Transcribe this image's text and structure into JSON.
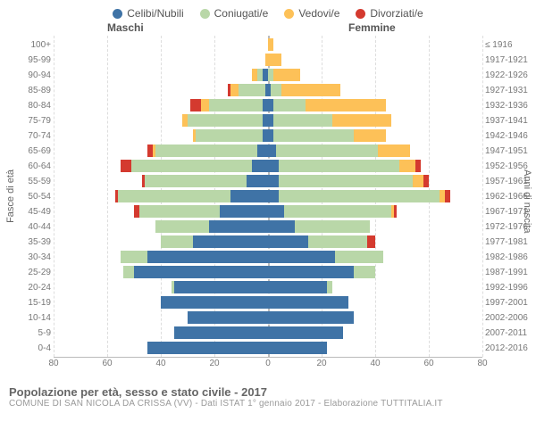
{
  "legend": [
    {
      "label": "Celibi/Nubili",
      "color": "#3f73a6"
    },
    {
      "label": "Coniugati/e",
      "color": "#b9d7a8"
    },
    {
      "label": "Vedovi/e",
      "color": "#fdc158"
    },
    {
      "label": "Divorziati/e",
      "color": "#d43a2f"
    }
  ],
  "header_male": "Maschi",
  "header_female": "Femmine",
  "axis_left_title": "Fasce di età",
  "axis_right_title": "Anni di nascita",
  "title": "Popolazione per età, sesso e stato civile - 2017",
  "subtitle": "COMUNE DI SAN NICOLA DA CRISSA (VV) - Dati ISTAT 1° gennaio 2017 - Elaborazione TUTTITALIA.IT",
  "colors": {
    "single": "#3f73a6",
    "married": "#b9d7a8",
    "widowed": "#fdc158",
    "divorced": "#d43a2f",
    "grid": "#dddddd",
    "center": "#bbbbbb",
    "bg": "#ffffff"
  },
  "xaxis": {
    "max": 80,
    "ticks": [
      80,
      60,
      40,
      20,
      0,
      20,
      40,
      60,
      80
    ]
  },
  "rows": [
    {
      "age": "100+",
      "birth": "≤ 1916",
      "m": [
        0,
        0,
        0,
        0
      ],
      "f": [
        0,
        0,
        2,
        0
      ]
    },
    {
      "age": "95-99",
      "birth": "1917-1921",
      "m": [
        0,
        0,
        1,
        0
      ],
      "f": [
        0,
        0,
        5,
        0
      ]
    },
    {
      "age": "90-94",
      "birth": "1922-1926",
      "m": [
        2,
        2,
        2,
        0
      ],
      "f": [
        0,
        2,
        10,
        0
      ]
    },
    {
      "age": "85-89",
      "birth": "1927-1931",
      "m": [
        1,
        10,
        3,
        1
      ],
      "f": [
        1,
        4,
        22,
        0
      ]
    },
    {
      "age": "80-84",
      "birth": "1932-1936",
      "m": [
        2,
        20,
        3,
        4
      ],
      "f": [
        2,
        12,
        30,
        0
      ]
    },
    {
      "age": "75-79",
      "birth": "1937-1941",
      "m": [
        2,
        28,
        2,
        0
      ],
      "f": [
        2,
        22,
        22,
        0
      ]
    },
    {
      "age": "70-74",
      "birth": "1942-1946",
      "m": [
        2,
        25,
        1,
        0
      ],
      "f": [
        2,
        30,
        12,
        0
      ]
    },
    {
      "age": "65-69",
      "birth": "1947-1951",
      "m": [
        4,
        38,
        1,
        2
      ],
      "f": [
        3,
        38,
        12,
        0
      ]
    },
    {
      "age": "60-64",
      "birth": "1952-1956",
      "m": [
        6,
        45,
        0,
        4
      ],
      "f": [
        4,
        45,
        6,
        2
      ]
    },
    {
      "age": "55-59",
      "birth": "1957-1961",
      "m": [
        8,
        38,
        0,
        1
      ],
      "f": [
        4,
        50,
        4,
        2
      ]
    },
    {
      "age": "50-54",
      "birth": "1962-1966",
      "m": [
        14,
        42,
        0,
        1
      ],
      "f": [
        4,
        60,
        2,
        2
      ]
    },
    {
      "age": "45-49",
      "birth": "1967-1971",
      "m": [
        18,
        30,
        0,
        2
      ],
      "f": [
        6,
        40,
        1,
        1
      ]
    },
    {
      "age": "40-44",
      "birth": "1972-1976",
      "m": [
        22,
        20,
        0,
        0
      ],
      "f": [
        10,
        28,
        0,
        0
      ]
    },
    {
      "age": "35-39",
      "birth": "1977-1981",
      "m": [
        28,
        12,
        0,
        0
      ],
      "f": [
        15,
        22,
        0,
        3
      ]
    },
    {
      "age": "30-34",
      "birth": "1982-1986",
      "m": [
        45,
        10,
        0,
        0
      ],
      "f": [
        25,
        18,
        0,
        0
      ]
    },
    {
      "age": "25-29",
      "birth": "1987-1991",
      "m": [
        50,
        4,
        0,
        0
      ],
      "f": [
        32,
        8,
        0,
        0
      ]
    },
    {
      "age": "20-24",
      "birth": "1992-1996",
      "m": [
        35,
        1,
        0,
        0
      ],
      "f": [
        22,
        2,
        0,
        0
      ]
    },
    {
      "age": "15-19",
      "birth": "1997-2001",
      "m": [
        40,
        0,
        0,
        0
      ],
      "f": [
        30,
        0,
        0,
        0
      ]
    },
    {
      "age": "10-14",
      "birth": "2002-2006",
      "m": [
        30,
        0,
        0,
        0
      ],
      "f": [
        32,
        0,
        0,
        0
      ]
    },
    {
      "age": "5-9",
      "birth": "2007-2011",
      "m": [
        35,
        0,
        0,
        0
      ],
      "f": [
        28,
        0,
        0,
        0
      ]
    },
    {
      "age": "0-4",
      "birth": "2012-2016",
      "m": [
        45,
        0,
        0,
        0
      ],
      "f": [
        22,
        0,
        0,
        0
      ]
    }
  ]
}
